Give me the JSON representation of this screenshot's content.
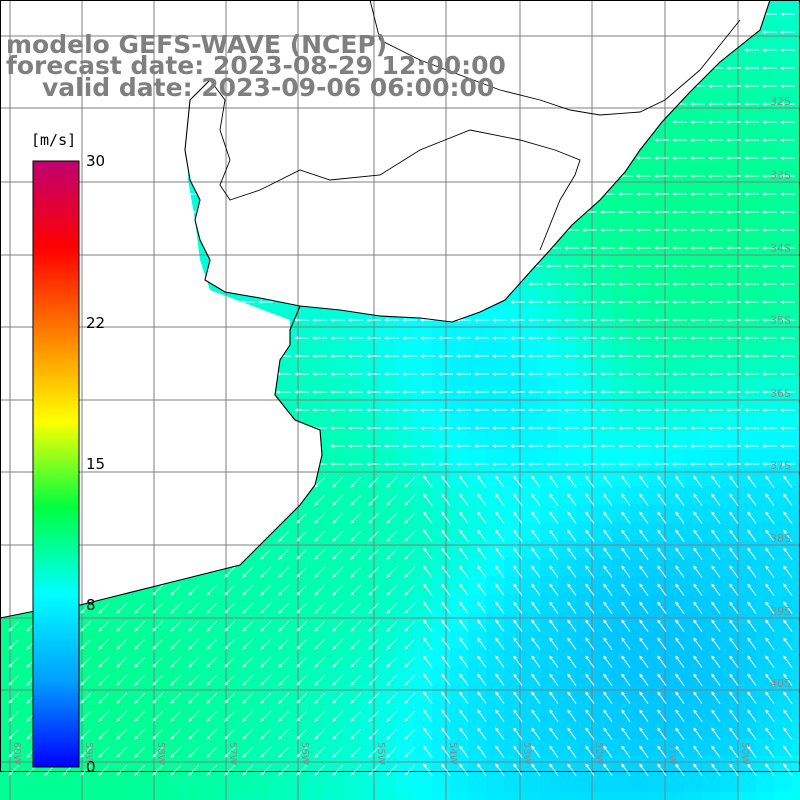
{
  "title": {
    "line1": "modelo GEFS-WAVE (NCEP)",
    "line2": "forecast date: 2023-08-29 12:00:00",
    "line3": "valid date: 2023-09-06 06:00:00"
  },
  "colorbar": {
    "unit": "[m/s]",
    "min": 0,
    "max": 30,
    "ticks": [
      "30",
      "22",
      "15",
      "8",
      "0"
    ],
    "colors": [
      "#0000ff",
      "#00a0ff",
      "#00ffff",
      "#00ff40",
      "#ffff00",
      "#ff8000",
      "#ff0000",
      "#c00070"
    ]
  },
  "map": {
    "lon_labels": [
      "60W",
      "59W",
      "58W",
      "57W",
      "56W",
      "55W",
      "54W",
      "53W",
      "52W",
      "51W",
      "50W"
    ],
    "lat_labels": [
      "32S",
      "33S",
      "34S",
      "35S",
      "36S",
      "37S",
      "38S",
      "39S",
      "40S"
    ]
  }
}
